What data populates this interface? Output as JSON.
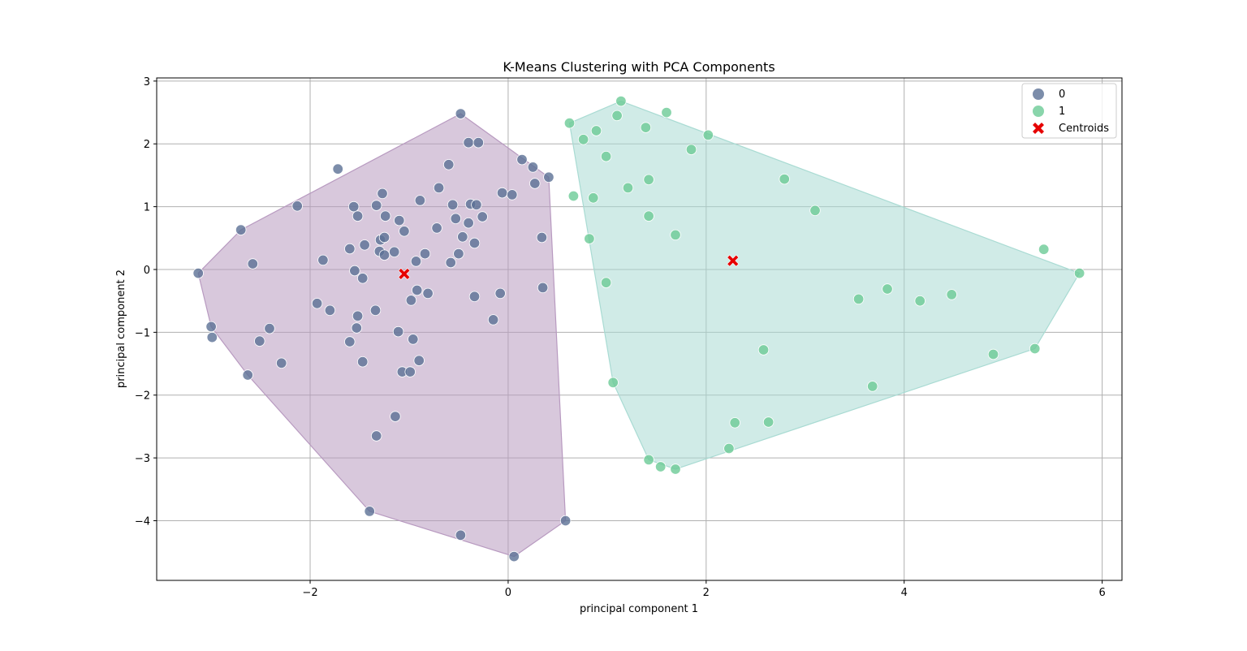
{
  "chart_data": {
    "type": "scatter",
    "title": "K-Means Clustering with PCA Components",
    "xlabel": "principal component 1",
    "ylabel": "principal component 2",
    "xlim": [
      -3.55,
      6.2
    ],
    "ylim": [
      -4.95,
      3.05
    ],
    "xticks": [
      -2,
      0,
      2,
      4,
      6
    ],
    "yticks": [
      -4,
      -3,
      -2,
      -1,
      0,
      1,
      2,
      3
    ],
    "grid": true,
    "legend_position": "top-right",
    "series": [
      {
        "name": "0",
        "color": "#5b7195",
        "hull_color": "#b89ac0",
        "hull": [
          [
            -0.48,
            2.48
          ],
          [
            0.41,
            1.47
          ],
          [
            0.58,
            -4.0
          ],
          [
            0.06,
            -4.57
          ],
          [
            -1.4,
            -3.85
          ],
          [
            -2.63,
            -1.68
          ],
          [
            -3.0,
            -0.91
          ],
          [
            -3.13,
            -0.06
          ],
          [
            -2.7,
            0.63
          ]
        ],
        "points": [
          [
            -0.48,
            2.48
          ],
          [
            -0.4,
            2.02
          ],
          [
            -0.3,
            2.02
          ],
          [
            -1.72,
            1.6
          ],
          [
            -0.6,
            1.67
          ],
          [
            0.14,
            1.75
          ],
          [
            0.25,
            1.63
          ],
          [
            0.41,
            1.47
          ],
          [
            0.27,
            1.37
          ],
          [
            -0.7,
            1.3
          ],
          [
            -1.27,
            1.21
          ],
          [
            -0.89,
            1.1
          ],
          [
            -0.06,
            1.22
          ],
          [
            0.04,
            1.19
          ],
          [
            -2.13,
            1.01
          ],
          [
            -1.56,
            1.0
          ],
          [
            -1.33,
            1.02
          ],
          [
            -0.56,
            1.03
          ],
          [
            -0.38,
            1.04
          ],
          [
            -0.32,
            1.03
          ],
          [
            -1.52,
            0.85
          ],
          [
            -1.24,
            0.85
          ],
          [
            -1.1,
            0.78
          ],
          [
            -0.53,
            0.81
          ],
          [
            -0.4,
            0.74
          ],
          [
            -0.26,
            0.84
          ],
          [
            -2.7,
            0.63
          ],
          [
            -1.05,
            0.61
          ],
          [
            -0.72,
            0.66
          ],
          [
            -1.29,
            0.47
          ],
          [
            -1.25,
            0.51
          ],
          [
            -1.45,
            0.39
          ],
          [
            -1.6,
            0.33
          ],
          [
            -0.46,
            0.52
          ],
          [
            -0.34,
            0.42
          ],
          [
            0.34,
            0.51
          ],
          [
            -1.3,
            0.29
          ],
          [
            -1.15,
            0.28
          ],
          [
            -1.25,
            0.23
          ],
          [
            -0.84,
            0.25
          ],
          [
            -0.5,
            0.25
          ],
          [
            -0.93,
            0.13
          ],
          [
            -0.58,
            0.11
          ],
          [
            -2.58,
            0.09
          ],
          [
            -1.87,
            0.15
          ],
          [
            -1.55,
            -0.02
          ],
          [
            -1.47,
            -0.14
          ],
          [
            -3.13,
            -0.06
          ],
          [
            -0.92,
            -0.33
          ],
          [
            -0.81,
            -0.38
          ],
          [
            0.35,
            -0.29
          ],
          [
            -0.34,
            -0.43
          ],
          [
            -0.08,
            -0.38
          ],
          [
            -0.98,
            -0.49
          ],
          [
            -1.93,
            -0.54
          ],
          [
            -1.8,
            -0.65
          ],
          [
            -1.34,
            -0.65
          ],
          [
            -1.52,
            -0.74
          ],
          [
            -3.0,
            -0.91
          ],
          [
            -2.41,
            -0.94
          ],
          [
            -1.53,
            -0.93
          ],
          [
            -0.15,
            -0.8
          ],
          [
            -2.99,
            -1.08
          ],
          [
            -2.51,
            -1.14
          ],
          [
            -1.6,
            -1.15
          ],
          [
            -1.11,
            -0.99
          ],
          [
            -0.96,
            -1.11
          ],
          [
            -1.47,
            -1.47
          ],
          [
            -2.29,
            -1.49
          ],
          [
            -0.9,
            -1.45
          ],
          [
            -2.63,
            -1.68
          ],
          [
            -1.07,
            -1.63
          ],
          [
            -0.99,
            -1.63
          ],
          [
            -1.14,
            -2.34
          ],
          [
            -1.33,
            -2.65
          ],
          [
            -1.4,
            -3.85
          ],
          [
            0.58,
            -4.0
          ],
          [
            -0.48,
            -4.23
          ],
          [
            0.06,
            -4.57
          ]
        ]
      },
      {
        "name": "1",
        "color": "#6ccb96",
        "hull_color": "#a9dbd3",
        "hull": [
          [
            0.62,
            2.33
          ],
          [
            1.14,
            2.68
          ],
          [
            5.77,
            -0.06
          ],
          [
            5.32,
            -1.26
          ],
          [
            1.69,
            -3.18
          ],
          [
            1.42,
            -3.03
          ],
          [
            1.06,
            -1.8
          ],
          [
            0.62,
            2.33
          ]
        ],
        "points": [
          [
            1.14,
            2.68
          ],
          [
            1.6,
            2.5
          ],
          [
            1.1,
            2.45
          ],
          [
            0.62,
            2.33
          ],
          [
            1.39,
            2.26
          ],
          [
            0.89,
            2.21
          ],
          [
            0.76,
            2.07
          ],
          [
            2.02,
            2.14
          ],
          [
            1.85,
            1.91
          ],
          [
            0.99,
            1.8
          ],
          [
            2.79,
            1.44
          ],
          [
            1.42,
            1.43
          ],
          [
            1.21,
            1.3
          ],
          [
            0.66,
            1.17
          ],
          [
            0.86,
            1.14
          ],
          [
            3.1,
            0.94
          ],
          [
            1.42,
            0.85
          ],
          [
            1.69,
            0.55
          ],
          [
            0.82,
            0.49
          ],
          [
            5.41,
            0.32
          ],
          [
            5.77,
            -0.06
          ],
          [
            0.99,
            -0.21
          ],
          [
            3.83,
            -0.31
          ],
          [
            4.48,
            -0.4
          ],
          [
            3.54,
            -0.47
          ],
          [
            4.16,
            -0.5
          ],
          [
            2.58,
            -1.28
          ],
          [
            4.9,
            -1.35
          ],
          [
            5.32,
            -1.26
          ],
          [
            3.68,
            -1.86
          ],
          [
            1.06,
            -1.8
          ],
          [
            2.29,
            -2.44
          ],
          [
            2.63,
            -2.43
          ],
          [
            2.23,
            -2.85
          ],
          [
            1.42,
            -3.03
          ],
          [
            1.54,
            -3.14
          ],
          [
            1.69,
            -3.18
          ]
        ]
      }
    ],
    "centroids": {
      "name": "Centroids",
      "color": "#e60000",
      "points": [
        [
          -1.05,
          -0.07
        ],
        [
          2.27,
          0.14
        ]
      ]
    }
  }
}
